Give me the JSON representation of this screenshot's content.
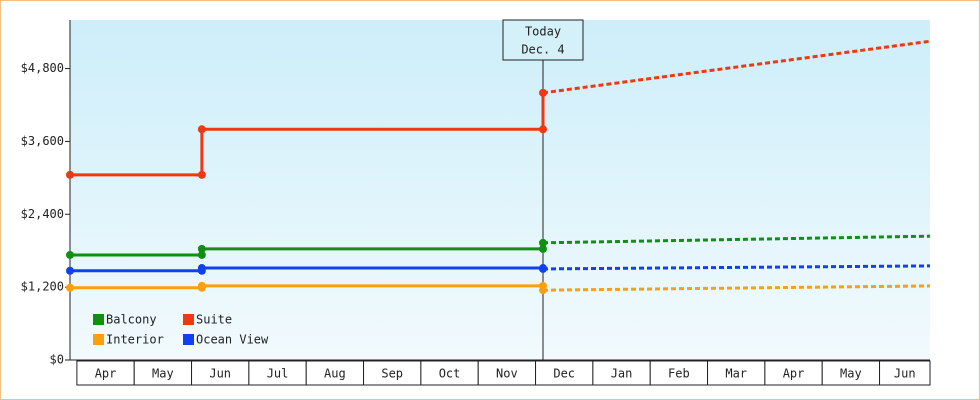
{
  "chart_data": {
    "type": "line",
    "categories": [
      "Apr",
      "May",
      "Jun",
      "Jul",
      "Aug",
      "Sep",
      "Oct",
      "Nov",
      "Dec",
      "Jan",
      "Feb",
      "Mar",
      "Apr",
      "May",
      "Jun"
    ],
    "x": [
      0,
      2.3,
      2.3,
      8.25
    ],
    "forecast_x": [
      8.25,
      15
    ],
    "xlim": [
      0,
      15
    ],
    "ylim": [
      0,
      5600
    ],
    "yticks": [
      {
        "value": 0,
        "label": "$0"
      },
      {
        "value": 1200,
        "label": "$1,200"
      },
      {
        "value": 2400,
        "label": "$2,400"
      },
      {
        "value": 3600,
        "label": "$3,600"
      },
      {
        "value": 4800,
        "label": "$4,800"
      }
    ],
    "today_x": 8.25,
    "today_label": [
      "Today",
      "Dec. 4"
    ],
    "series": [
      {
        "name": "Balcony",
        "color": "#109010",
        "values": [
          1730,
          1730,
          1830,
          1830
        ],
        "forecast_values": [
          1930,
          2040
        ]
      },
      {
        "name": "Suite",
        "color": "#f03810",
        "values": [
          3050,
          3050,
          3800,
          3800
        ],
        "forecast_values": [
          4400,
          5250
        ]
      },
      {
        "name": "Interior",
        "color": "#f8a010",
        "values": [
          1190,
          1190,
          1220,
          1220
        ],
        "forecast_values": [
          1150,
          1220
        ]
      },
      {
        "name": "Ocean View",
        "color": "#1040f0",
        "values": [
          1470,
          1470,
          1515,
          1515
        ],
        "forecast_values": [
          1500,
          1550
        ]
      }
    ]
  }
}
